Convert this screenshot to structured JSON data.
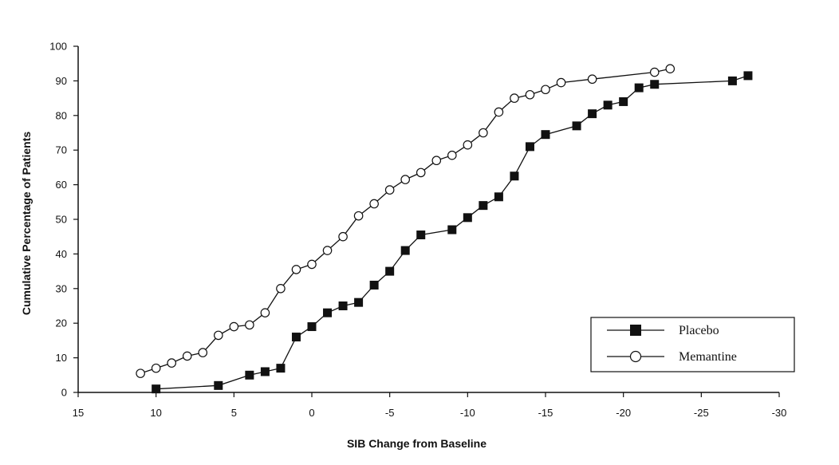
{
  "chart_data": {
    "type": "line",
    "title": "",
    "xlabel": "SIB Change from Baseline",
    "ylabel": "Cumulative Percentage of Patients",
    "xlim": [
      15,
      -30
    ],
    "ylim": [
      0,
      100
    ],
    "x_reversed": true,
    "xticks": [
      15,
      10,
      5,
      0,
      -5,
      -10,
      -15,
      -20,
      -25,
      -30
    ],
    "yticks": [
      0,
      10,
      20,
      30,
      40,
      50,
      60,
      70,
      80,
      90,
      100
    ],
    "grid": false,
    "legend_position": "bottom-right",
    "series": [
      {
        "name": "Placebo",
        "marker": "filled-square",
        "color": "#111111",
        "x": [
          10,
          6,
          4,
          3,
          2,
          1,
          0,
          -1,
          -2,
          -3,
          -4,
          -5,
          -6,
          -7,
          -9,
          -10,
          -11,
          -12,
          -13,
          -14,
          -15,
          -17,
          -18,
          -19,
          -20,
          -21,
          -22,
          -27,
          -28
        ],
        "y": [
          1,
          2,
          5,
          6,
          7,
          16,
          19,
          23,
          25,
          26,
          31,
          35,
          41,
          45.5,
          47,
          50.5,
          54,
          56.5,
          62.5,
          71,
          74.5,
          77,
          80.5,
          83,
          84,
          88,
          89,
          90,
          91.5
        ]
      },
      {
        "name": "Memantine",
        "marker": "open-circle",
        "color": "#111111",
        "x": [
          11,
          10,
          9,
          8,
          7,
          6,
          5,
          4,
          3,
          2,
          1,
          0,
          -1,
          -2,
          -3,
          -4,
          -5,
          -6,
          -7,
          -8,
          -9,
          -10,
          -11,
          -12,
          -13,
          -14,
          -15,
          -16,
          -18,
          -22,
          -23
        ],
        "y": [
          5.5,
          7,
          8.5,
          10.5,
          11.5,
          16.5,
          19,
          19.5,
          23,
          30,
          35.5,
          37,
          41,
          45,
          51,
          54.5,
          58.5,
          61.5,
          63.5,
          67,
          68.5,
          71.5,
          75,
          81,
          85,
          86,
          87.5,
          89.5,
          90.5,
          92.5,
          93.5
        ]
      }
    ]
  }
}
